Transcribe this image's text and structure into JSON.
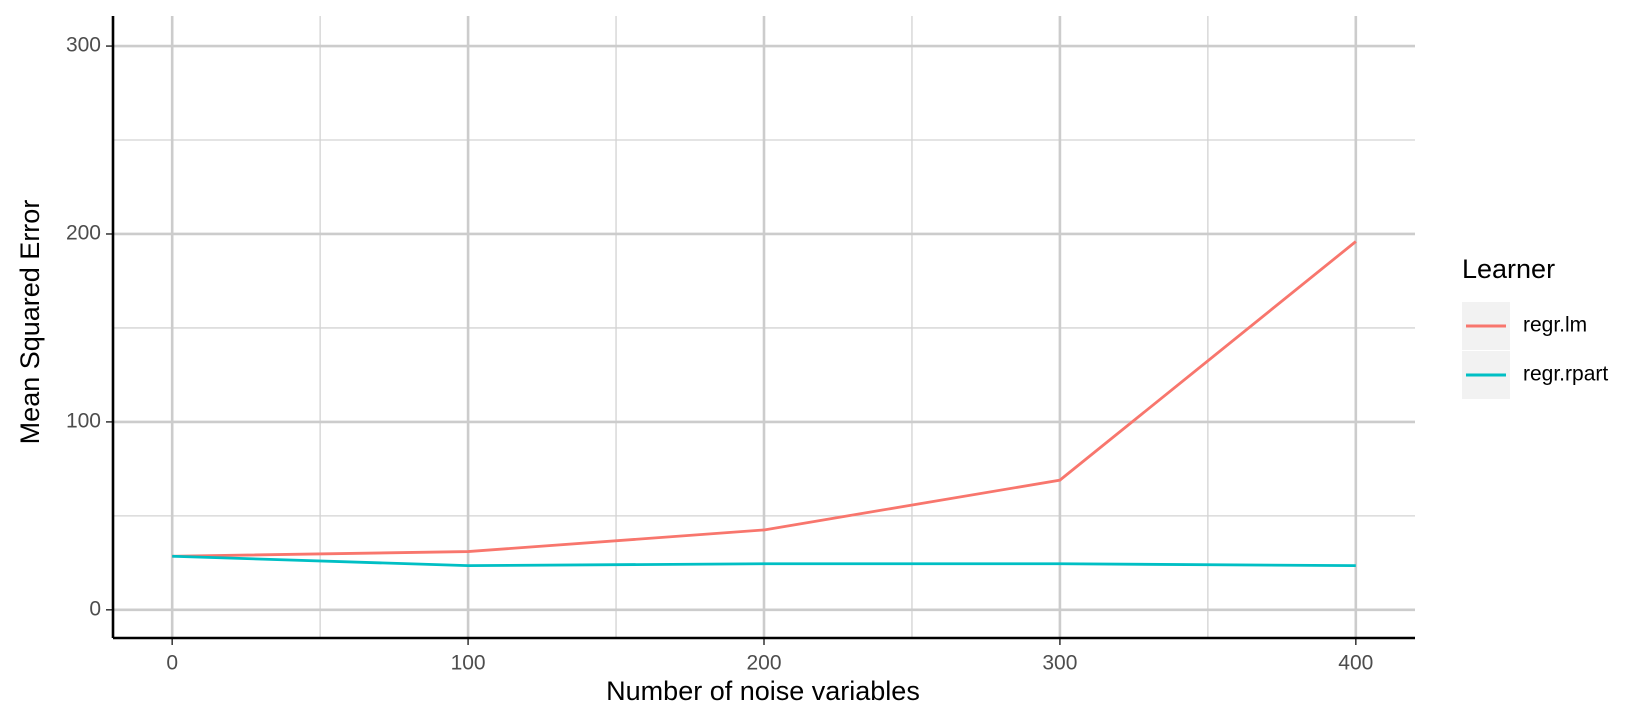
{
  "chart_data": {
    "type": "line",
    "x_label": "Number of noise variables",
    "y_label": "Mean Squared Error",
    "x": [
      0,
      100,
      200,
      300,
      400
    ],
    "series": [
      {
        "name": "regr.lm",
        "color": "#f8766d",
        "values": [
          28.5,
          31,
          42.5,
          69,
          196
        ]
      },
      {
        "name": "regr.rpart",
        "color": "#00bfc4",
        "values": [
          28.5,
          23.5,
          24.5,
          24.5,
          23.5
        ]
      }
    ],
    "xlim": [
      -20,
      420
    ],
    "xticks": [
      0,
      100,
      200,
      300,
      400
    ],
    "xminor": [
      50,
      150,
      250,
      350
    ],
    "ylim": [
      -15,
      316
    ],
    "yticks": [
      0,
      100,
      200,
      300
    ],
    "yminor": [
      50,
      150,
      250
    ],
    "grid": true,
    "legend_title": "Learner",
    "legend": "right"
  }
}
